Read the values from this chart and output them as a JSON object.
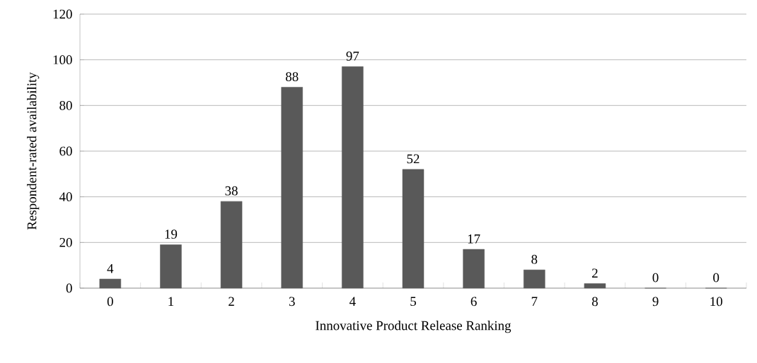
{
  "chart_data": {
    "type": "bar",
    "xlabel": "Innovative Product Release Ranking",
    "ylabel": "Respondent-rated availability",
    "categories": [
      "0",
      "1",
      "2",
      "3",
      "4",
      "5",
      "6",
      "7",
      "8",
      "9",
      "10"
    ],
    "values": [
      4,
      19,
      38,
      88,
      97,
      52,
      17,
      8,
      2,
      0,
      0
    ],
    "color": "#595959",
    "ylim": [
      0,
      120
    ],
    "yticks": [
      0,
      20,
      40,
      60,
      80,
      100,
      120
    ],
    "grid": "y",
    "data_labels": true
  }
}
